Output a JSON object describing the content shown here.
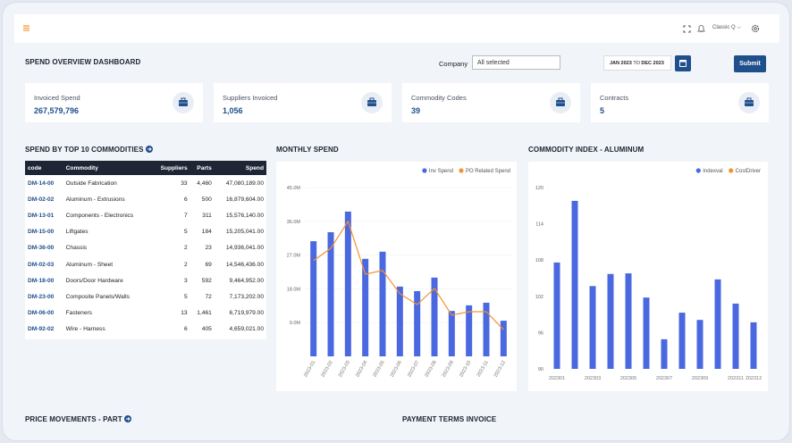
{
  "top_bar": {
    "theme": "Classic Q"
  },
  "page_title": "SPEND OVERVIEW DASHBOARD",
  "filters": {
    "company_label": "Company",
    "company_value": "All selected",
    "date_from": "JAN 2023",
    "date_sep": "TO",
    "date_to": "DEC 2023",
    "submit": "Submit"
  },
  "kpis": [
    {
      "label": "Invoiced Spend",
      "value": "267,579,796"
    },
    {
      "label": "Suppliers Invoiced",
      "value": "1,056"
    },
    {
      "label": "Commodity Codes",
      "value": "39"
    },
    {
      "label": "Contracts",
      "value": "5"
    }
  ],
  "table": {
    "title": "SPEND BY TOP 10 COMMODITIES",
    "columns": [
      "code",
      "Commodity",
      "Suppliers",
      "Parts",
      "Spend"
    ],
    "rows": [
      [
        "DM-14-00",
        "Outside Fabrication",
        "33",
        "4,460",
        "47,080,189.00"
      ],
      [
        "DM-02-02",
        "Aluminum - Extrusions",
        "6",
        "500",
        "16,879,604.00"
      ],
      [
        "DM-13-01",
        "Components - Electronics",
        "7",
        "311",
        "15,576,140.00"
      ],
      [
        "DM-15-00",
        "Liftgates",
        "5",
        "184",
        "15,205,041.00"
      ],
      [
        "DM-36-00",
        "Chassis",
        "2",
        "23",
        "14,936,041.00"
      ],
      [
        "DM-02-03",
        "Aluminum - Sheet",
        "2",
        "69",
        "14,546,436.00"
      ],
      [
        "DM-18-00",
        "Doors/Door Hardware",
        "3",
        "592",
        "9,464,952.00"
      ],
      [
        "DM-23-00",
        "Composite Panels/Walls",
        "5",
        "72",
        "7,173,202.00"
      ],
      [
        "DM-06-00",
        "Fasteners",
        "13",
        "1,461",
        "6,719,979.00"
      ],
      [
        "DM-92-02",
        "Wire - Harness",
        "6",
        "405",
        "4,659,021.00"
      ]
    ]
  },
  "chart_data": [
    {
      "type": "bar",
      "title": "MONTHLY SPEND",
      "categories": [
        "2023-01",
        "2023-02",
        "2023-03",
        "2023-04",
        "2023-05",
        "2023-06",
        "2023-07",
        "2023-08",
        "2023-09",
        "2023-10",
        "2023-11",
        "2023-12"
      ],
      "series": [
        {
          "name": "Inv Spend",
          "type": "bar",
          "color": "#4a68df",
          "values": [
            30700000,
            33100000,
            38600000,
            26000000,
            27900000,
            18600000,
            17400000,
            21000000,
            12100000,
            13600000,
            14300000,
            9500000
          ]
        },
        {
          "name": "PO Related Spend",
          "type": "line",
          "color": "#f5922f",
          "values": [
            25500000,
            28800000,
            36000000,
            21900000,
            22900000,
            16700000,
            13800000,
            18100000,
            11000000,
            11900000,
            11900000,
            7100000
          ]
        }
      ],
      "ylim": [
        0,
        45000000
      ],
      "yticks": [
        {
          "value": 9000000,
          "label": "9.0M"
        },
        {
          "value": 18000000,
          "label": "18.0M"
        },
        {
          "value": 27000000,
          "label": "27.0M"
        },
        {
          "value": 36000000,
          "label": "36.0M"
        },
        {
          "value": 45000000,
          "label": "45.0M"
        }
      ],
      "grid": true,
      "legend": "top-right"
    },
    {
      "type": "bar",
      "title": "COMMODITY INDEX - ALUMINUM",
      "categories": [
        "202301",
        null,
        "202303",
        null,
        "202305",
        null,
        "202307",
        null,
        "202309",
        null,
        "202311",
        "202312"
      ],
      "series": [
        {
          "name": "Indexval",
          "type": "bar",
          "color": "#4a68df",
          "values": [
            107.6,
            117.8,
            103.7,
            105.7,
            105.8,
            101.8,
            94.9,
            99.3,
            98.1,
            104.8,
            100.8,
            97.7
          ]
        },
        {
          "name": "CostDriver",
          "type": "line",
          "color": "#f5922f",
          "values": [
            null,
            null,
            null,
            null,
            null,
            null,
            null,
            null,
            null,
            null,
            null,
            null
          ]
        }
      ],
      "ylim": [
        90,
        120
      ],
      "yticks": [
        90,
        96,
        102,
        108,
        114,
        120
      ],
      "grid": false,
      "legend": "top-right"
    }
  ],
  "sections": {
    "price_movements": "PRICE MOVEMENTS - PART",
    "payment_terms": "PAYMENT TERMS INVOICE"
  }
}
